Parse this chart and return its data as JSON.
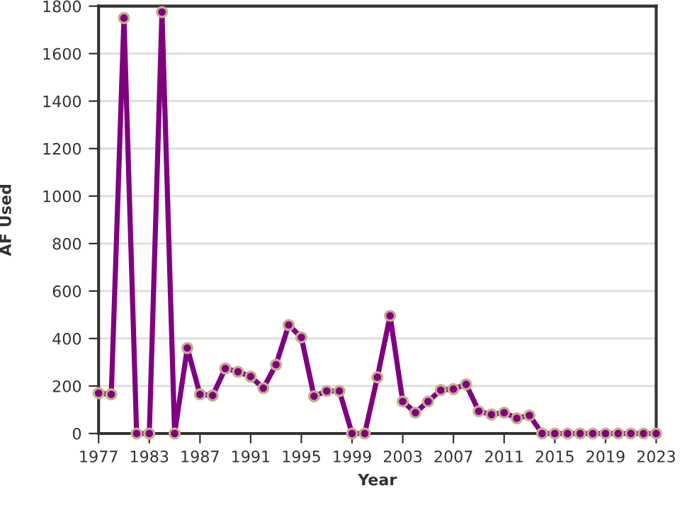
{
  "chart_data": {
    "type": "line",
    "xlabel": "Year",
    "ylabel": "AF Used",
    "categories": [
      "1977",
      null,
      null,
      null,
      "1983",
      null,
      null,
      null,
      "1987",
      null,
      null,
      null,
      "1991",
      null,
      null,
      null,
      "1995",
      null,
      null,
      null,
      "1999",
      null,
      null,
      null,
      "2003",
      null,
      null,
      null,
      "2007",
      null,
      null,
      null,
      "2011",
      null,
      null,
      null,
      "2015",
      null,
      null,
      null,
      "2019",
      null,
      null,
      null,
      "2023"
    ],
    "series": [
      {
        "color": "#800080",
        "values": [
          170,
          165,
          1750,
          0,
          0,
          1775,
          0,
          360,
          165,
          160,
          274,
          260,
          240,
          191,
          290,
          457,
          405,
          157,
          179,
          179,
          0,
          0,
          237,
          496,
          135,
          88,
          135,
          183,
          187,
          207,
          94,
          80,
          88,
          64,
          76,
          0,
          0,
          0,
          0,
          0,
          0,
          0,
          0,
          0,
          0
        ]
      }
    ],
    "ylim": [
      0,
      1800
    ],
    "yticks": [
      0,
      200,
      400,
      600,
      800,
      1000,
      1200,
      1400,
      1600,
      1800
    ],
    "grid": "y",
    "marker": "circle",
    "line_style": "solid"
  }
}
